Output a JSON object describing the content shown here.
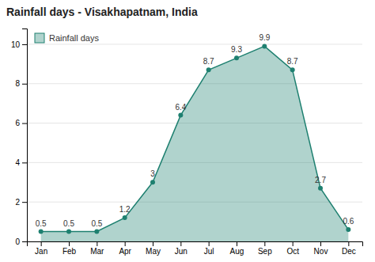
{
  "chart_data": {
    "type": "area",
    "title": "Rainfall days - Visakhapatnam, India",
    "categories": [
      "Jan",
      "Feb",
      "Mar",
      "Apr",
      "May",
      "Jun",
      "Jul",
      "Aug",
      "Sep",
      "Oct",
      "Nov",
      "Dec"
    ],
    "series": [
      {
        "name": "Rainfall days",
        "color": "#1e8070",
        "values": [
          0.5,
          0.5,
          0.5,
          1.2,
          3.0,
          6.4,
          8.7,
          9.3,
          9.9,
          8.7,
          2.7,
          0.6
        ]
      }
    ],
    "ylim": [
      0,
      10.8
    ],
    "yticks": [
      0,
      2,
      4,
      6,
      8,
      10
    ],
    "grid": true,
    "legend": "upper left",
    "data_labels": true,
    "marker": "circle"
  }
}
